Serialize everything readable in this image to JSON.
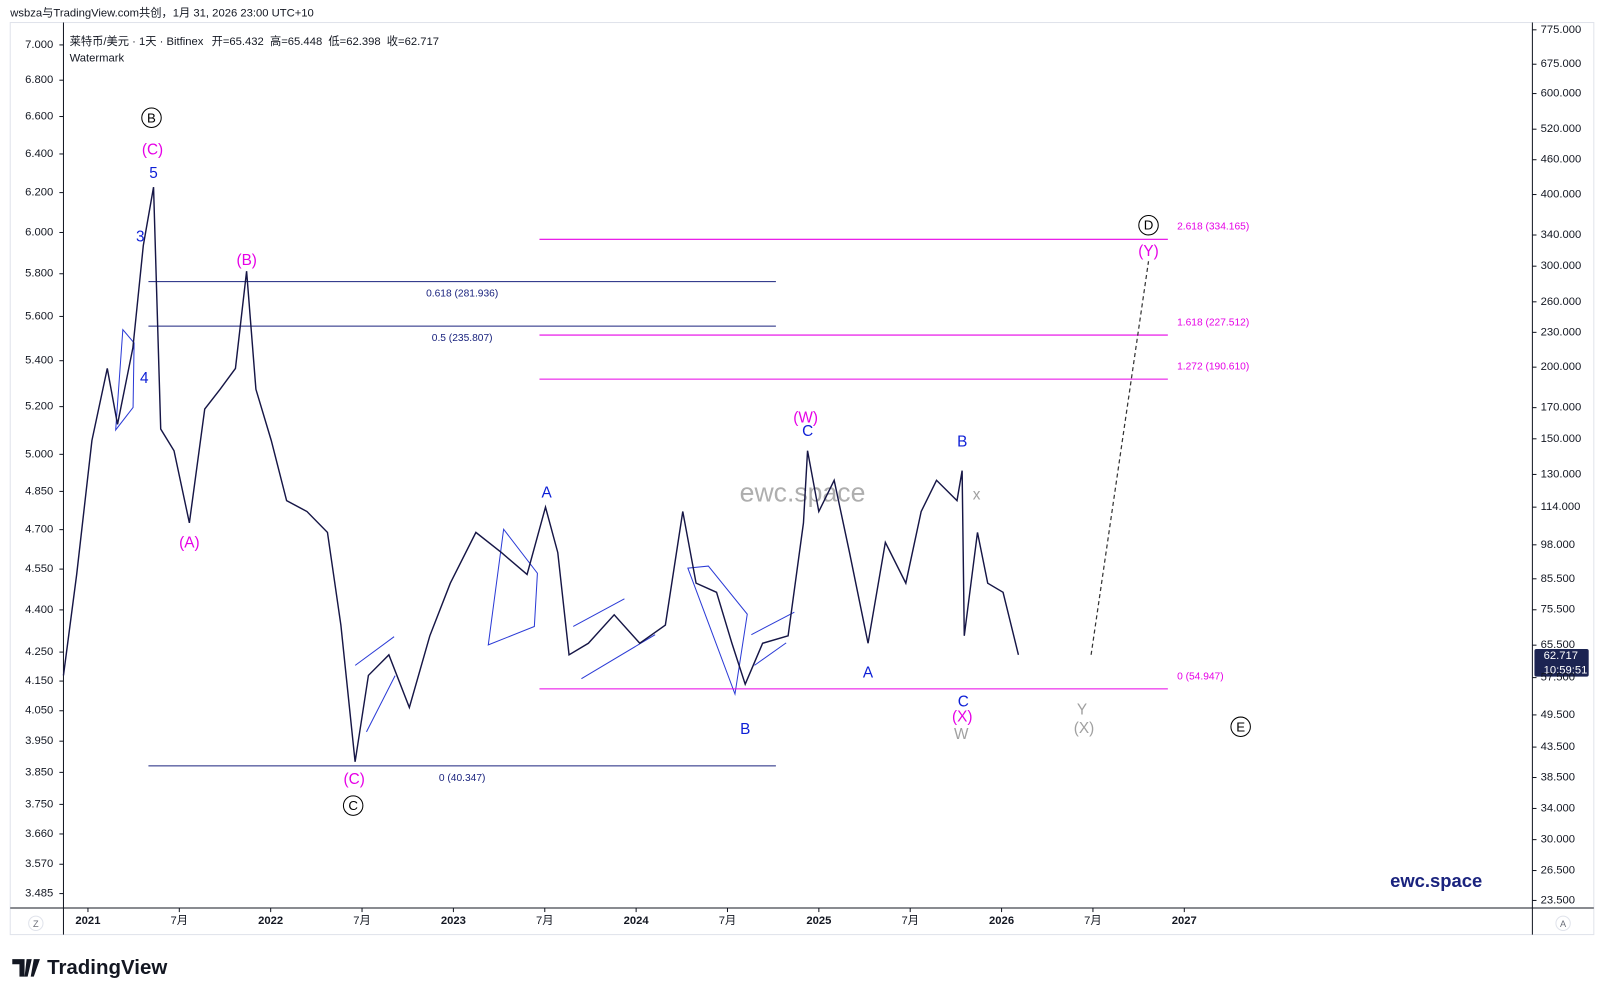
{
  "header": {
    "credit": "wsbza与TradingView.com共创，1月 31, 2026 23:00 UTC+10"
  },
  "footer": {
    "logo": "TradingView"
  },
  "chart_data": {
    "type": "line",
    "symbol": "莱特币/美元 · 1天 · Bitfinex",
    "ohlc": [
      {
        "label": "开=",
        "value": 65.432
      },
      {
        "label": "高=",
        "value": 65.448
      },
      {
        "label": "低=",
        "value": 62.398
      },
      {
        "label": "收=",
        "value": 62.717
      }
    ],
    "watermark_label": "Watermark",
    "watermark": "ewc.space",
    "brand": "ewc.space",
    "last_price": {
      "value": 62.717,
      "countdown": "10:59:51"
    },
    "scale_buttons": [
      "Z",
      "A"
    ],
    "log": true,
    "grid": false,
    "color": "#161646",
    "x": [
      2020.866,
      2020.938,
      2021.022,
      2021.106,
      2021.162,
      2021.246,
      2021.303,
      2021.359,
      2021.398,
      2021.471,
      2021.555,
      2021.639,
      2021.723,
      2021.807,
      2021.868,
      2021.919,
      2022.003,
      2022.087,
      2022.199,
      2022.311,
      2022.384,
      2022.462,
      2022.535,
      2022.647,
      2022.759,
      2022.871,
      2022.983,
      2023.123,
      2023.263,
      2023.403,
      2023.504,
      2023.571,
      2023.633,
      2023.739,
      2023.88,
      2024.02,
      2024.16,
      2024.255,
      2024.328,
      2024.44,
      2024.524,
      2024.597,
      2024.692,
      2024.832,
      2024.916,
      2024.938,
      2025.0,
      2025.084,
      2025.168,
      2025.269,
      2025.364,
      2025.476,
      2025.56,
      2025.644,
      2025.756,
      2025.784,
      2025.796,
      2025.868,
      2025.924,
      2026.008,
      2026.092
    ],
    "values": [
      58,
      87,
      149,
      199,
      159,
      216,
      326,
      412,
      156,
      143,
      107,
      169,
      183,
      199,
      294,
      183,
      149,
      117,
      112,
      103,
      71,
      41,
      58,
      63,
      51,
      68,
      84,
      103,
      95,
      87,
      114,
      95,
      63,
      66,
      74,
      66,
      71,
      112,
      84,
      81,
      66,
      56,
      66,
      68,
      107,
      143,
      112,
      127,
      95,
      66,
      99,
      84,
      112,
      127,
      117,
      132,
      68,
      103,
      84,
      81,
      63
    ],
    "projection": {
      "color": "#333333",
      "x": [
        2026.49,
        2026.804
      ],
      "values": [
        63,
        306
      ]
    },
    "fib_blue": {
      "color": "#1a237e",
      "start": 2021.331,
      "end": 2024.765,
      "levels": [
        {
          "label": "0.618 (281.936)",
          "value": 281.936
        },
        {
          "label": "0.5 (235.807)",
          "value": 235.807
        },
        {
          "label": "0 (40.347)",
          "value": 40.347
        }
      ]
    },
    "fib_magenta": {
      "color": "#e600e6",
      "start": 2023.471,
      "end": 2026.91,
      "levels": [
        {
          "label": "2.618 (334.165)",
          "value": 334.165
        },
        {
          "label": "1.618 (227.512)",
          "value": 227.512
        },
        {
          "label": "1.272 (190.610)",
          "value": 190.61
        },
        {
          "label": "0 (54.947)",
          "value": 54.947
        }
      ]
    },
    "annotations": [
      {
        "text": "B",
        "color": "#000000",
        "circled": true
      },
      {
        "text": "(C)",
        "color": "#e600e6"
      },
      {
        "text": "5",
        "color": "#0d1fd6"
      },
      {
        "text": "3",
        "color": "#0d1fd6"
      },
      {
        "text": "4",
        "color": "#0d1fd6"
      },
      {
        "text": "(B)",
        "color": "#e600e6"
      },
      {
        "text": "(A)",
        "color": "#e600e6"
      },
      {
        "text": "(C)",
        "color": "#e600e6"
      },
      {
        "text": "C",
        "color": "#000000",
        "circled": true
      },
      {
        "text": "A",
        "color": "#0d1fd6"
      },
      {
        "text": "B",
        "color": "#0d1fd6"
      },
      {
        "text": "(W)",
        "color": "#e600e6"
      },
      {
        "text": "C",
        "color": "#0d1fd6"
      },
      {
        "text": "A",
        "color": "#0d1fd6"
      },
      {
        "text": "B",
        "color": "#0d1fd6"
      },
      {
        "text": "C",
        "color": "#0d1fd6"
      },
      {
        "text": "(X)",
        "color": "#e600e6"
      },
      {
        "text": "W",
        "color": "#a0a0a0"
      },
      {
        "text": "x",
        "color": "#a0a0a0"
      },
      {
        "text": "Y",
        "color": "#a0a0a0"
      },
      {
        "text": "(X)",
        "color": "#a0a0a0"
      },
      {
        "text": "E",
        "color": "#000000",
        "circled": true
      },
      {
        "text": "D",
        "color": "#000000",
        "circled": true
      },
      {
        "text": "(Y)",
        "color": "#e600e6"
      }
    ],
    "xlim": [
      2020.866,
      2028.905
    ],
    "xticks": [
      2021,
      {
        "value": 2021.5,
        "label": "7月"
      },
      2022,
      {
        "value": 2022.5,
        "label": "7月"
      },
      2023,
      {
        "value": 2023.5,
        "label": "7月"
      },
      2024,
      {
        "value": 2024.5,
        "label": "7月"
      },
      2025,
      {
        "value": 2025.5,
        "label": "7月"
      },
      2026,
      {
        "value": 2026.5,
        "label": "7月"
      },
      2027
    ],
    "ylim": [
      22.8,
      798
    ],
    "yticks": [
      {
        "value": 775,
        "label": "775.000"
      },
      {
        "value": 675,
        "label": "675.000"
      },
      {
        "value": 600,
        "label": "600.000"
      },
      {
        "value": 520,
        "label": "520.000"
      },
      {
        "value": 460,
        "label": "460.000"
      },
      {
        "value": 400,
        "label": "400.000"
      },
      {
        "value": 340,
        "label": "340.000"
      },
      {
        "value": 300,
        "label": "300.000"
      },
      {
        "value": 260,
        "label": "260.000"
      },
      {
        "value": 230,
        "label": "230.000"
      },
      {
        "value": 200,
        "label": "200.000"
      },
      {
        "value": 170,
        "label": "170.000"
      },
      {
        "value": 150,
        "label": "150.000"
      },
      {
        "value": 130,
        "label": "130.000"
      },
      {
        "value": 114,
        "label": "114.000"
      },
      {
        "value": 98,
        "label": "98.000"
      },
      {
        "value": 85.5,
        "label": "85.500"
      },
      {
        "value": 75.5,
        "label": "75.500"
      },
      {
        "value": 65.5,
        "label": "65.500"
      },
      {
        "value": 57.5,
        "label": "57.500"
      },
      {
        "value": 49.5,
        "label": "49.500"
      },
      {
        "value": 43.5,
        "label": "43.500"
      },
      {
        "value": 38.5,
        "label": "38.500"
      },
      {
        "value": 34,
        "label": "34.000"
      },
      {
        "value": 30,
        "label": "30.000"
      },
      {
        "value": 26.5,
        "label": "26.500"
      },
      {
        "value": 23.5,
        "label": "23.500"
      }
    ],
    "y2lim": [
      3.444,
      7.13
    ],
    "y2ticks": [
      {
        "value": 7,
        "label": "7.000"
      },
      {
        "value": 6.8,
        "label": "6.800"
      },
      {
        "value": 6.6,
        "label": "6.600"
      },
      {
        "value": 6.4,
        "label": "6.400"
      },
      {
        "value": 6.2,
        "label": "6.200"
      },
      {
        "value": 6,
        "label": "6.000"
      },
      {
        "value": 5.8,
        "label": "5.800"
      },
      {
        "value": 5.6,
        "label": "5.600"
      },
      {
        "value": 5.4,
        "label": "5.400"
      },
      {
        "value": 5.2,
        "label": "5.200"
      },
      {
        "value": 5,
        "label": "5.000"
      },
      {
        "value": 4.85,
        "label": "4.850"
      },
      {
        "value": 4.7,
        "label": "4.700"
      },
      {
        "value": 4.55,
        "label": "4.550"
      },
      {
        "value": 4.4,
        "label": "4.400"
      },
      {
        "value": 4.25,
        "label": "4.250"
      },
      {
        "value": 4.15,
        "label": "4.150"
      },
      {
        "value": 4.05,
        "label": "4.050"
      },
      {
        "value": 3.95,
        "label": "3.950"
      },
      {
        "value": 3.85,
        "label": "3.850"
      },
      {
        "value": 3.75,
        "label": "3.750"
      },
      {
        "value": 3.66,
        "label": "3.660"
      },
      {
        "value": 3.57,
        "label": "3.570"
      },
      {
        "value": 3.485,
        "label": "3.485"
      }
    ]
  }
}
